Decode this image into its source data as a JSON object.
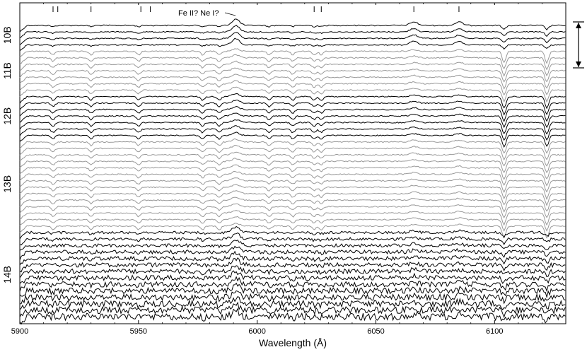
{
  "chart_data": {
    "type": "line",
    "title": "",
    "xlabel": "Wavelength (Å)",
    "ylabel": "",
    "xlim": [
      5900,
      6130
    ],
    "x_ticks": [
      5900,
      5950,
      6000,
      6050,
      6100
    ],
    "x_tick_labels": [
      "5900",
      "5950",
      "6000",
      "6050",
      "6100"
    ],
    "grid": false,
    "legend": "none",
    "spectrum_count": 46,
    "groups": [
      {
        "label": "10B",
        "from": 0,
        "to": 3,
        "color": "#000000"
      },
      {
        "label": "11B",
        "from": 4,
        "to": 10,
        "color": "#999999"
      },
      {
        "label": "12B",
        "from": 11,
        "to": 17,
        "color": "#000000"
      },
      {
        "label": "13B",
        "from": 18,
        "to": 31,
        "color": "#999999"
      },
      {
        "label": "14B",
        "from": 32,
        "to": 45,
        "color": "#000000"
      }
    ],
    "line_markers": [
      5914,
      5916,
      5930,
      5951,
      5955,
      6024,
      6027,
      6066,
      6085
    ],
    "emission_features": [
      5991,
      6066,
      6085
    ],
    "absorption_features": [
      5914,
      5930,
      5950,
      5977,
      5984,
      6005,
      6015,
      6024,
      6027,
      6104,
      6122
    ],
    "annotation": {
      "text": "Fe II? Ne I?",
      "x": 5991
    },
    "scale_bar": "unlabeled vertical double-headed arrow at right"
  }
}
